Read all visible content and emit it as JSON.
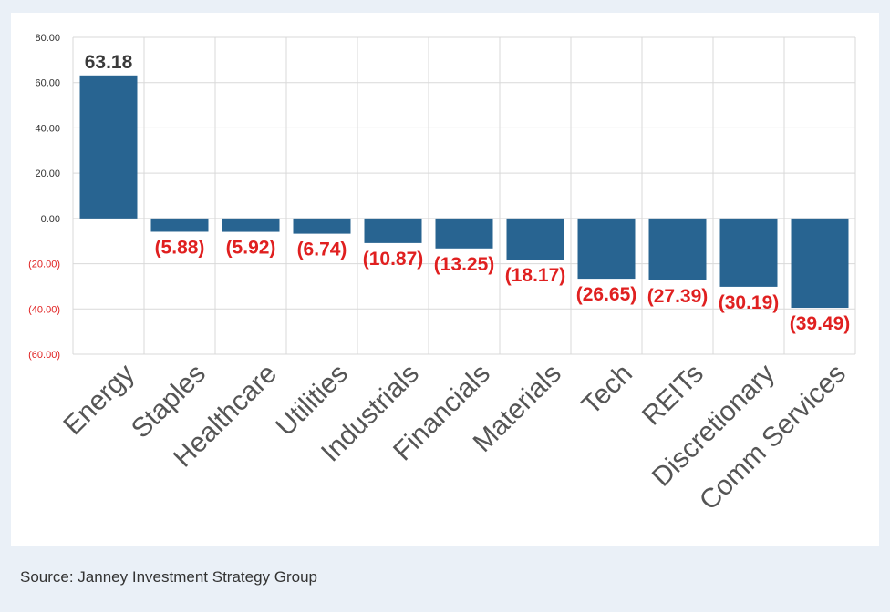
{
  "chart_data": {
    "type": "bar",
    "categories": [
      "Energy",
      "Staples",
      "Healthcare",
      "Utilities",
      "Industrials",
      "Financials",
      "Materials",
      "Tech",
      "REITs",
      "Discretionary",
      "Comm Services"
    ],
    "values": [
      63.18,
      -5.88,
      -5.92,
      -6.74,
      -10.87,
      -13.25,
      -18.17,
      -26.65,
      -27.39,
      -30.19,
      -39.49
    ],
    "data_labels": [
      "63.18",
      "(5.88)",
      "(5.92)",
      "(6.74)",
      "(10.87)",
      "(13.25)",
      "(18.17)",
      "(26.65)",
      "(27.39)",
      "(30.19)",
      "(39.49)"
    ],
    "ylim": [
      -60,
      80
    ],
    "yticks": [
      80,
      60,
      40,
      20,
      0,
      -20,
      -40,
      -60
    ],
    "ytick_labels": [
      "80.00",
      "60.00",
      "40.00",
      "20.00",
      "0.00",
      "(20.00)",
      "(40.00)",
      "(60.00)"
    ],
    "grid": true,
    "legend": "none",
    "title": "",
    "xlabel": "",
    "ylabel": ""
  },
  "colors": {
    "bar": "#286491",
    "negative_label": "#e02020",
    "positive_label": "#3a3a3a",
    "axis_label": "#333333",
    "grid": "#d9d9d9",
    "category_label": "#555555"
  },
  "footer": {
    "source": "Source: Janney Investment Strategy Group"
  }
}
